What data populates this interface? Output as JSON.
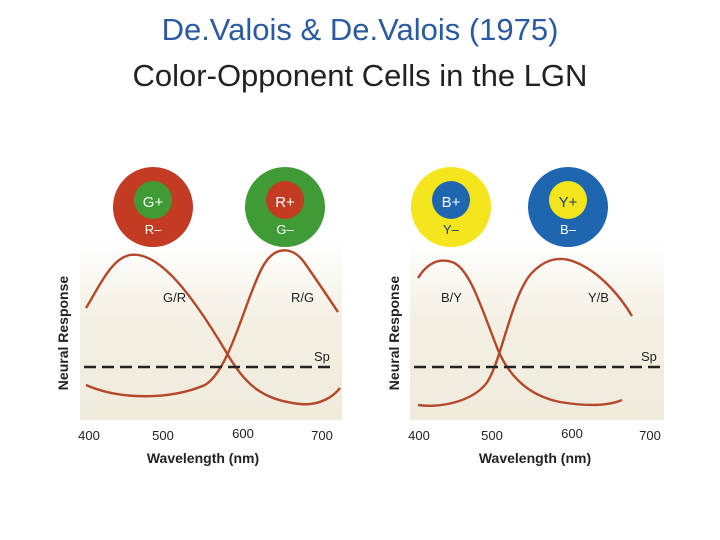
{
  "title": {
    "line1": "De.Valois & De.Valois (1975)",
    "line2": "Color-Opponent Cells in the LGN"
  },
  "colors": {
    "title_blue": "#2c5aa0",
    "curve": "#b5482a",
    "red_cell": "#c23b22",
    "green_cell": "#3f9b35",
    "yellow_cell": "#f4e51c",
    "blue_cell": "#1f66b0",
    "background_tint": "#f1eee0"
  },
  "panels": [
    {
      "cells": [
        {
          "center": "G+",
          "surround": "R–",
          "outer_color": "red",
          "inner_color": "green"
        },
        {
          "center": "R+",
          "surround": "G–",
          "outer_color": "green",
          "inner_color": "red"
        }
      ],
      "curve_labels": [
        "G/R",
        "R/G"
      ],
      "sp_label": "Sp",
      "ylabel": "Neural Response",
      "xlabel": "Wavelength (nm)",
      "ticks": [
        "400",
        "500",
        "600",
        "700"
      ]
    },
    {
      "cells": [
        {
          "center": "B+",
          "surround": "Y–",
          "outer_color": "yellow",
          "inner_color": "blue"
        },
        {
          "center": "Y+",
          "surround": "B–",
          "outer_color": "blue",
          "inner_color": "yellow"
        }
      ],
      "curve_labels": [
        "B/Y",
        "Y/B"
      ],
      "sp_label": "Sp",
      "ylabel": "Neural Response",
      "xlabel": "Wavelength (nm)",
      "ticks": [
        "400",
        "500",
        "600",
        "700"
      ]
    }
  ]
}
